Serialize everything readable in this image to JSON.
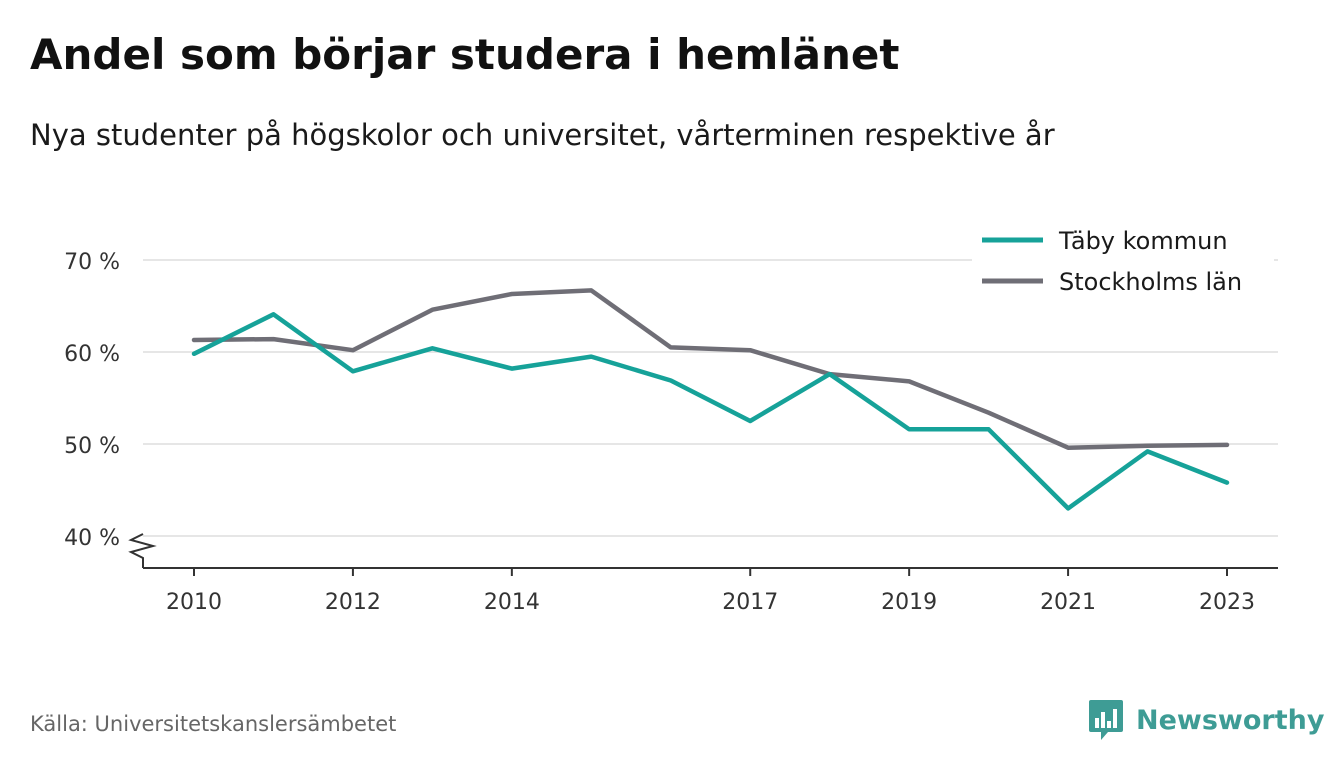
{
  "header": {
    "title": "Andel som börjar studera i hemlänet",
    "subtitle": "Nya studenter på högskolor och universitet, vårterminen respektive år"
  },
  "footer": {
    "source": "Källa: Universitetskanslersämbetet",
    "brand": "Newsworthy",
    "brand_color": "#3e9c95"
  },
  "chart_data": {
    "type": "line",
    "title": "Andel som börjar studera i hemlänet",
    "subtitle": "Nya studenter på högskolor och universitet, vårterminen respektive år",
    "xlabel": "",
    "ylabel": "",
    "x": [
      2010,
      2011,
      2012,
      2013,
      2014,
      2015,
      2016,
      2017,
      2018,
      2019,
      2020,
      2021,
      2022,
      2023
    ],
    "x_tick_values": [
      2010,
      2012,
      2014,
      2017,
      2019,
      2021,
      2023
    ],
    "x_tick_labels": [
      "2010",
      "2012",
      "2014",
      "2017",
      "2019",
      "2021",
      "2023"
    ],
    "y_tick_values": [
      40,
      50,
      60,
      70
    ],
    "y_tick_labels": [
      "40 %",
      "50 %",
      "60 %",
      "70 %"
    ],
    "ylim": [
      36.5,
      70
    ],
    "y_axis_break": true,
    "grid": true,
    "legend_position": "top-right",
    "series": [
      {
        "name": "Täby kommun",
        "color": "#16a299",
        "values": [
          59.8,
          64.1,
          57.9,
          60.4,
          58.2,
          59.5,
          56.9,
          52.5,
          57.6,
          51.6,
          51.6,
          43.0,
          49.2,
          45.8
        ]
      },
      {
        "name": "Stockholms län",
        "color": "#6f6e76",
        "values": [
          61.3,
          61.4,
          60.2,
          64.6,
          66.3,
          66.7,
          60.5,
          60.2,
          57.6,
          56.8,
          53.4,
          49.6,
          49.8,
          49.9
        ]
      }
    ]
  }
}
